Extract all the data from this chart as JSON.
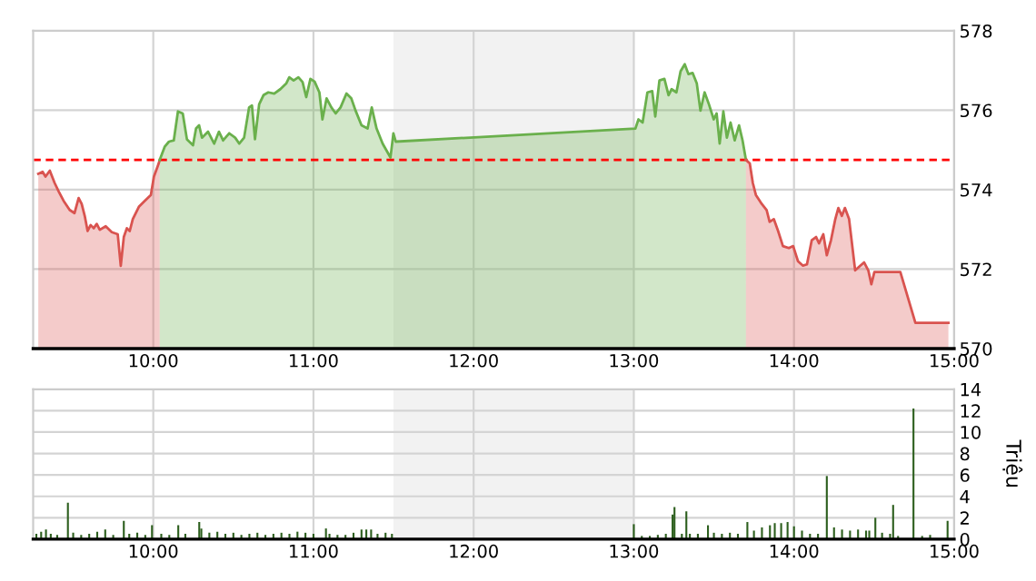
{
  "chart_data": [
    {
      "type": "area",
      "xlim": [
        9.25,
        15.0
      ],
      "ylim": [
        570,
        578
      ],
      "xticks": [
        {
          "value": 10,
          "label": "10:00"
        },
        {
          "value": 11,
          "label": "11:00"
        },
        {
          "value": 12,
          "label": "12:00"
        },
        {
          "value": 13,
          "label": "13:00"
        },
        {
          "value": 14,
          "label": "14:00"
        },
        {
          "value": 15,
          "label": "15:00"
        }
      ],
      "yticks": [
        570,
        572,
        574,
        576,
        578
      ],
      "grid": true,
      "bands": [
        {
          "axis": "x",
          "from": 11.5,
          "to": 13.0,
          "color": "#f2f2f2"
        }
      ],
      "ref_lines": [
        {
          "axis": "y",
          "value": 574.75,
          "color": "#ff0000",
          "line_style": "dashed"
        }
      ],
      "series": [
        {
          "color": "#d9534f",
          "x": [
            9.282,
            9.309,
            9.327,
            9.354,
            9.384,
            9.41,
            9.44,
            9.478,
            9.508,
            9.534,
            9.553,
            9.572,
            9.59,
            9.609,
            9.628,
            9.647,
            9.666,
            9.703,
            9.741,
            9.778,
            9.797,
            9.816,
            9.835,
            9.853,
            9.872,
            9.91,
            9.947,
            9.985,
            10.004,
            10.034,
            10.04
          ],
          "values": [
            574.4,
            574.45,
            574.33,
            574.48,
            574.17,
            573.95,
            573.72,
            573.49,
            573.41,
            573.79,
            573.64,
            573.34,
            572.96,
            573.11,
            573.03,
            573.14,
            572.99,
            573.08,
            572.93,
            572.88,
            572.08,
            572.81,
            573.03,
            572.96,
            573.26,
            573.57,
            573.72,
            573.87,
            574.33,
            574.66,
            574.75
          ]
        },
        {
          "color": "#6ab04c",
          "x": [
            10.04,
            10.071,
            10.098,
            10.128,
            10.154,
            10.184,
            10.21,
            10.248,
            10.267,
            10.286,
            10.304,
            10.342,
            10.38,
            10.41,
            10.436,
            10.474,
            10.511,
            10.537,
            10.567,
            10.598,
            10.616,
            10.635,
            10.661,
            10.688,
            10.718,
            10.755,
            10.793,
            10.831,
            10.849,
            10.876,
            10.906,
            10.932,
            10.955,
            10.981,
            11.007,
            11.037,
            11.056,
            11.082,
            11.112,
            11.139,
            11.169,
            11.206,
            11.236,
            11.263,
            11.3,
            11.338,
            11.364,
            11.394,
            11.432,
            11.481,
            11.499,
            11.514,
            13.01,
            13.029,
            13.055,
            13.085,
            13.115,
            13.134,
            13.16,
            13.191,
            13.217,
            13.236,
            13.266,
            13.292,
            13.318,
            13.341,
            13.367,
            13.393,
            13.416,
            13.442,
            13.469,
            13.499,
            13.517,
            13.536,
            13.559,
            13.581,
            13.604,
            13.63,
            13.657,
            13.679,
            13.7
          ],
          "values": [
            574.75,
            575.08,
            575.21,
            575.24,
            575.97,
            575.92,
            575.27,
            575.12,
            575.54,
            575.62,
            575.31,
            575.46,
            575.16,
            575.46,
            575.24,
            575.42,
            575.31,
            575.16,
            575.31,
            576.07,
            576.12,
            575.27,
            576.15,
            576.38,
            576.45,
            576.42,
            576.53,
            576.68,
            576.83,
            576.75,
            576.83,
            576.71,
            576.33,
            576.79,
            576.72,
            576.45,
            575.77,
            576.3,
            576.07,
            575.92,
            576.07,
            576.42,
            576.3,
            575.99,
            575.62,
            575.54,
            576.07,
            575.54,
            575.16,
            574.81,
            575.42,
            575.21,
            575.54,
            575.77,
            575.69,
            576.45,
            576.48,
            575.84,
            576.75,
            576.79,
            576.38,
            576.53,
            576.45,
            576.98,
            577.16,
            576.91,
            576.94,
            576.68,
            575.99,
            576.45,
            576.15,
            575.77,
            575.92,
            575.16,
            575.97,
            575.31,
            575.69,
            575.24,
            575.62,
            575.24,
            574.75
          ]
        },
        {
          "color": "#d9534f",
          "x": [
            13.7,
            13.724,
            13.743,
            13.762,
            13.799,
            13.829,
            13.848,
            13.874,
            13.901,
            13.931,
            13.968,
            13.995,
            14.025,
            14.055,
            14.081,
            14.111,
            14.138,
            14.156,
            14.183,
            14.205,
            14.231,
            14.258,
            14.277,
            14.299,
            14.318,
            14.344,
            14.382,
            14.412,
            14.438,
            14.464,
            14.483,
            14.502,
            14.551,
            14.664,
            14.758,
            14.964
          ],
          "values": [
            574.75,
            574.66,
            574.17,
            573.87,
            573.64,
            573.49,
            573.19,
            573.26,
            572.96,
            572.58,
            572.53,
            572.58,
            572.2,
            572.09,
            572.12,
            572.73,
            572.81,
            572.65,
            572.88,
            572.35,
            572.73,
            573.26,
            573.54,
            573.34,
            573.54,
            573.26,
            571.97,
            572.08,
            572.17,
            571.97,
            571.62,
            571.93,
            571.93,
            571.93,
            570.65,
            570.65
          ]
        }
      ]
    },
    {
      "type": "bar",
      "xlim": [
        9.25,
        15.0
      ],
      "ylim": [
        0,
        14
      ],
      "ylabel": "Triệu",
      "xticks": [
        {
          "value": 10,
          "label": "10:00"
        },
        {
          "value": 11,
          "label": "11:00"
        },
        {
          "value": 12,
          "label": "12:00"
        },
        {
          "value": 13,
          "label": "13:00"
        },
        {
          "value": 14,
          "label": "14:00"
        },
        {
          "value": 15,
          "label": "15:00"
        }
      ],
      "yticks": [
        0,
        2,
        4,
        6,
        8,
        10,
        12,
        14
      ],
      "grid": true,
      "bands": [
        {
          "axis": "x",
          "from": 11.5,
          "to": 13.0,
          "color": "#f2f2f2"
        }
      ],
      "series": [
        {
          "color": "#2d5f1e",
          "x": [
            9.27,
            9.3,
            9.33,
            9.36,
            9.4,
            9.467,
            9.5,
            9.55,
            9.6,
            9.65,
            9.7,
            9.75,
            9.816,
            9.85,
            9.9,
            9.95,
            9.992,
            10.05,
            10.1,
            10.156,
            10.2,
            10.287,
            10.3,
            10.35,
            10.4,
            10.45,
            10.5,
            10.55,
            10.6,
            10.65,
            10.7,
            10.75,
            10.8,
            10.85,
            10.9,
            10.95,
            11.0,
            11.078,
            11.1,
            11.15,
            11.2,
            11.25,
            11.3,
            11.33,
            11.36,
            11.4,
            11.45,
            11.49,
            13.0,
            13.05,
            13.1,
            13.15,
            13.2,
            13.242,
            13.254,
            13.3,
            13.328,
            13.35,
            13.4,
            13.463,
            13.5,
            13.55,
            13.6,
            13.65,
            13.709,
            13.75,
            13.8,
            13.85,
            13.88,
            13.92,
            13.96,
            14.0,
            14.05,
            14.1,
            14.15,
            14.205,
            14.25,
            14.3,
            14.35,
            14.4,
            14.45,
            14.47,
            14.508,
            14.55,
            14.6,
            14.619,
            14.65,
            14.746,
            14.8,
            14.85,
            14.959
          ],
          "values": [
            0.5,
            0.7,
            0.9,
            0.5,
            0.4,
            3.4,
            0.6,
            0.4,
            0.5,
            0.7,
            0.9,
            0.4,
            1.7,
            0.5,
            0.6,
            0.4,
            1.3,
            0.5,
            0.4,
            1.3,
            0.5,
            1.6,
            1.0,
            0.6,
            0.7,
            0.5,
            0.6,
            0.4,
            0.5,
            0.6,
            0.4,
            0.5,
            0.6,
            0.5,
            0.7,
            0.6,
            0.5,
            1.0,
            0.5,
            0.4,
            0.4,
            0.6,
            0.9,
            0.9,
            0.9,
            0.5,
            0.6,
            0.5,
            1.4,
            0.3,
            0.3,
            0.4,
            0.5,
            2.3,
            3.0,
            0.5,
            2.6,
            0.5,
            0.5,
            1.3,
            0.6,
            0.5,
            0.6,
            0.5,
            1.6,
            0.8,
            1.1,
            1.3,
            1.5,
            1.5,
            1.6,
            1.2,
            0.8,
            0.5,
            0.5,
            5.9,
            1.1,
            0.9,
            0.8,
            0.9,
            0.8,
            0.8,
            2.0,
            0.6,
            0.5,
            3.2,
            0.3,
            12.2,
            0.3,
            0.4,
            1.7
          ]
        }
      ]
    }
  ]
}
